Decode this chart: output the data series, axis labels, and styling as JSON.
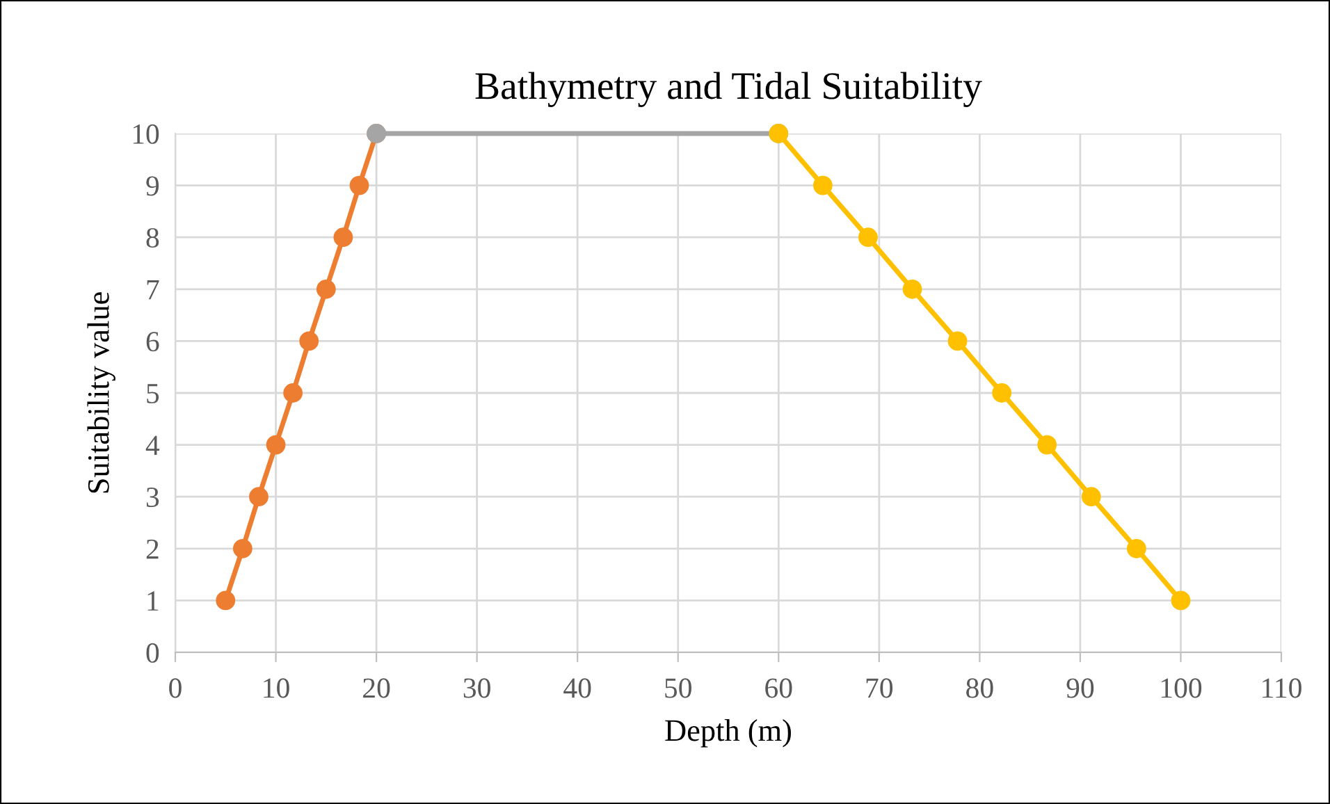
{
  "chart_data": {
    "type": "line",
    "title": "Bathymetry and Tidal Suitability",
    "xlabel": "Depth (m)",
    "ylabel": "Suitability value",
    "series": [
      {
        "color": "#ed7d31",
        "x": [
          5,
          6.7,
          8.3,
          10,
          11.7,
          13.3,
          15,
          16.7,
          18.3,
          20
        ],
        "values": [
          1,
          2,
          3,
          4,
          5,
          6,
          7,
          8,
          9,
          10
        ]
      },
      {
        "color": "#a5a5a5",
        "x": [
          20,
          60
        ],
        "values": [
          10,
          10
        ]
      },
      {
        "color": "#ffc000",
        "x": [
          60,
          64.4,
          68.9,
          73.3,
          77.8,
          82.2,
          86.7,
          91.1,
          95.6,
          100
        ],
        "values": [
          10,
          9,
          8,
          7,
          6,
          5,
          4,
          3,
          2,
          1
        ]
      }
    ],
    "xlim": [
      0,
      110
    ],
    "xticks": [
      0,
      10,
      20,
      30,
      40,
      50,
      60,
      70,
      80,
      90,
      100,
      110
    ],
    "ylim": [
      0,
      10
    ],
    "yticks": [
      0,
      1,
      2,
      3,
      4,
      5,
      6,
      7,
      8,
      9,
      10
    ],
    "grid": true,
    "marker": "circle",
    "line_style": "solid"
  }
}
